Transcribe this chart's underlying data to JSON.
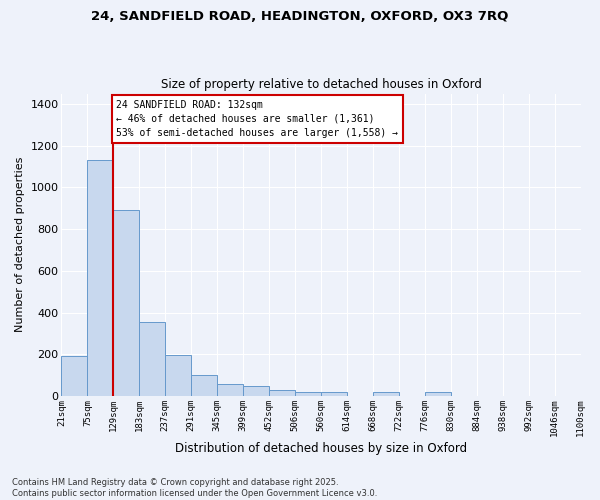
{
  "title_line1": "24, SANDFIELD ROAD, HEADINGTON, OXFORD, OX3 7RQ",
  "title_line2": "Size of property relative to detached houses in Oxford",
  "xlabel": "Distribution of detached houses by size in Oxford",
  "ylabel": "Number of detached properties",
  "bin_labels": [
    "21sqm",
    "75sqm",
    "129sqm",
    "183sqm",
    "237sqm",
    "291sqm",
    "345sqm",
    "399sqm",
    "452sqm",
    "506sqm",
    "560sqm",
    "614sqm",
    "668sqm",
    "722sqm",
    "776sqm",
    "830sqm",
    "884sqm",
    "938sqm",
    "992sqm",
    "1046sqm",
    "1100sqm"
  ],
  "bar_values": [
    190,
    1130,
    890,
    355,
    195,
    100,
    60,
    50,
    30,
    20,
    20,
    0,
    20,
    0,
    20,
    0,
    0,
    0,
    0,
    0
  ],
  "bar_color": "#c8d8ee",
  "bar_edge_color": "#6699cc",
  "property_line_x_label": "129sqm",
  "annotation_text": "24 SANDFIELD ROAD: 132sqm\n← 46% of detached houses are smaller (1,361)\n53% of semi-detached houses are larger (1,558) →",
  "annotation_box_color": "#ffffff",
  "annotation_box_edge": "#cc0000",
  "property_line_color": "#cc0000",
  "background_color": "#eef2fa",
  "grid_color": "#ffffff",
  "footer_line1": "Contains HM Land Registry data © Crown copyright and database right 2025.",
  "footer_line2": "Contains public sector information licensed under the Open Government Licence v3.0.",
  "ylim": [
    0,
    1450
  ],
  "yticks": [
    0,
    200,
    400,
    600,
    800,
    1000,
    1200,
    1400
  ]
}
